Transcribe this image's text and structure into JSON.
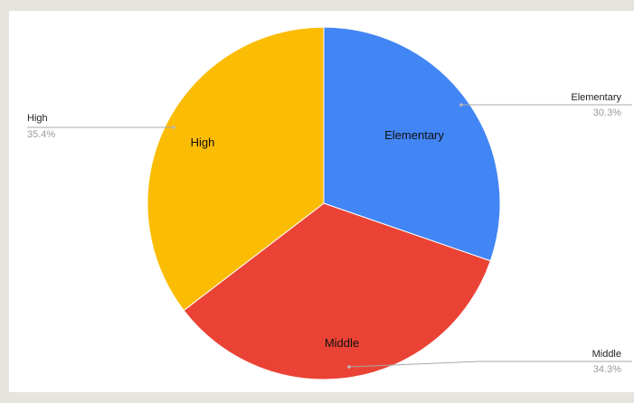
{
  "chart_data": {
    "type": "pie",
    "title": "",
    "start_angle_deg": 0,
    "direction": "clockwise",
    "slices": [
      {
        "label": "Elementary",
        "value": 30.3,
        "percent_label": "30.3%",
        "color": "#4285f4"
      },
      {
        "label": "Middle",
        "value": 34.3,
        "percent_label": "34.3%",
        "color": "#ea4335"
      },
      {
        "label": "High",
        "value": 35.4,
        "percent_label": "35.4%",
        "color": "#fbbc04"
      }
    ],
    "legend": "none",
    "labels": "inside slices plus callouts with percentages"
  }
}
